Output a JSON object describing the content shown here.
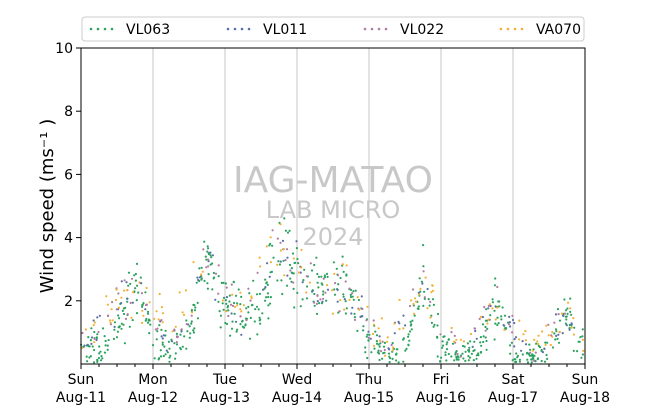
{
  "chart_data": {
    "type": "scatter",
    "ylabel": "Wind speed (ms⁻¹ )",
    "ylim": [
      0,
      10
    ],
    "y_ticks": [
      "2",
      "4",
      "6",
      "8",
      "10"
    ],
    "xlim": [
      "2024-08-11",
      "2024-08-18"
    ],
    "x_ticks": [
      {
        "day": "Sun",
        "date": "Aug-11"
      },
      {
        "day": "Mon",
        "date": "Aug-12"
      },
      {
        "day": "Tue",
        "date": "Aug-13"
      },
      {
        "day": "Wed",
        "date": "Aug-14"
      },
      {
        "day": "Thu",
        "date": "Aug-15"
      },
      {
        "day": "Fri",
        "date": "Aug-16"
      },
      {
        "day": "Sat",
        "date": "Aug-17"
      },
      {
        "day": "Sun",
        "date": "Aug-18"
      }
    ],
    "grid": "vertical gridlines at each day",
    "legend_position": "top, horizontal",
    "watermark": [
      "IAG-MATAO",
      "LAB MICRO",
      "2024"
    ],
    "series": [
      {
        "name": "VL063",
        "color": "#2ca25f",
        "daily_profile": [
          {
            "time": "2024-08-11 00:00",
            "y": 0.6
          },
          {
            "time": "2024-08-11 06:00",
            "y": 0.4
          },
          {
            "time": "2024-08-11 12:00",
            "y": 0.9
          },
          {
            "time": "2024-08-11 16:00",
            "y": 2.2
          },
          {
            "time": "2024-08-11 18:00",
            "y": 2.6
          },
          {
            "time": "2024-08-11 21:00",
            "y": 1.8
          },
          {
            "time": "2024-08-12 00:00",
            "y": 0.7
          },
          {
            "time": "2024-08-12 06:00",
            "y": 0.5
          },
          {
            "time": "2024-08-12 12:00",
            "y": 0.8
          },
          {
            "time": "2024-08-12 16:00",
            "y": 2.6
          },
          {
            "time": "2024-08-12 18:00",
            "y": 3.3
          },
          {
            "time": "2024-08-12 21:00",
            "y": 2.3
          },
          {
            "time": "2024-08-13 00:00",
            "y": 1.8
          },
          {
            "time": "2024-08-13 06:00",
            "y": 1.5
          },
          {
            "time": "2024-08-13 12:00",
            "y": 1.9
          },
          {
            "time": "2024-08-13 16:00",
            "y": 3.0
          },
          {
            "time": "2024-08-13 18:00",
            "y": 4.0
          },
          {
            "time": "2024-08-13 21:00",
            "y": 3.3
          },
          {
            "time": "2024-08-14 00:00",
            "y": 2.6
          },
          {
            "time": "2024-08-14 06:00",
            "y": 2.4
          },
          {
            "time": "2024-08-14 12:00",
            "y": 2.8
          },
          {
            "time": "2024-08-14 16:00",
            "y": 2.6
          },
          {
            "time": "2024-08-14 18:00",
            "y": 2.2
          },
          {
            "time": "2024-08-14 21:00",
            "y": 1.3
          },
          {
            "time": "2024-08-15 00:00",
            "y": 0.8
          },
          {
            "time": "2024-08-15 06:00",
            "y": 0.3
          },
          {
            "time": "2024-08-15 12:00",
            "y": 0.3
          },
          {
            "time": "2024-08-15 16:00",
            "y": 1.6
          },
          {
            "time": "2024-08-15 18:00",
            "y": 2.9
          },
          {
            "time": "2024-08-15 21:00",
            "y": 1.8
          },
          {
            "time": "2024-08-16 00:00",
            "y": 0.4
          },
          {
            "time": "2024-08-16 06:00",
            "y": 0.2
          },
          {
            "time": "2024-08-16 12:00",
            "y": 0.3
          },
          {
            "time": "2024-08-16 16:00",
            "y": 1.4
          },
          {
            "time": "2024-08-16 18:00",
            "y": 1.9
          },
          {
            "time": "2024-08-16 21:00",
            "y": 1.2
          },
          {
            "time": "2024-08-17 00:00",
            "y": 0.2
          },
          {
            "time": "2024-08-17 06:00",
            "y": 0.2
          },
          {
            "time": "2024-08-17 12:00",
            "y": 0.4
          },
          {
            "time": "2024-08-17 16:00",
            "y": 1.3
          },
          {
            "time": "2024-08-17 18:00",
            "y": 1.6
          },
          {
            "time": "2024-08-17 21:00",
            "y": 0.9
          },
          {
            "time": "2024-08-18 00:00",
            "y": 0.3
          }
        ]
      },
      {
        "name": "VL011",
        "color": "#5b6fa8",
        "daily_profile": [
          {
            "time": "2024-08-11 00:00",
            "y": 0.5
          },
          {
            "time": "2024-08-11 18:00",
            "y": 2.3
          },
          {
            "time": "2024-08-12 06:00",
            "y": 0.5
          },
          {
            "time": "2024-08-12 18:00",
            "y": 2.9
          },
          {
            "time": "2024-08-13 06:00",
            "y": 0.8
          },
          {
            "time": "2024-08-13 18:00",
            "y": 3.8
          },
          {
            "time": "2024-08-14 06:00",
            "y": 2.2
          },
          {
            "time": "2024-08-14 18:00",
            "y": 2.0
          },
          {
            "time": "2024-08-15 06:00",
            "y": 0.4
          },
          {
            "time": "2024-08-15 18:00",
            "y": 2.7
          },
          {
            "time": "2024-08-16 06:00",
            "y": 0.2
          },
          {
            "time": "2024-08-16 18:00",
            "y": 1.7
          },
          {
            "time": "2024-08-17 06:00",
            "y": 0.2
          },
          {
            "time": "2024-08-17 18:00",
            "y": 1.4
          },
          {
            "time": "2024-08-18 00:00",
            "y": 0.3
          }
        ]
      },
      {
        "name": "VL022",
        "color": "#b07aa1",
        "daily_profile": [
          {
            "time": "2024-08-11 00:00",
            "y": 0.6
          },
          {
            "time": "2024-08-11 18:00",
            "y": 2.4
          },
          {
            "time": "2024-08-12 06:00",
            "y": 0.5
          },
          {
            "time": "2024-08-12 18:00",
            "y": 3.0
          },
          {
            "time": "2024-08-13 06:00",
            "y": 1.6
          },
          {
            "time": "2024-08-13 18:00",
            "y": 3.7
          },
          {
            "time": "2024-08-14 06:00",
            "y": 2.4
          },
          {
            "time": "2024-08-14 18:00",
            "y": 2.1
          },
          {
            "time": "2024-08-15 06:00",
            "y": 0.4
          },
          {
            "time": "2024-08-15 18:00",
            "y": 2.8
          },
          {
            "time": "2024-08-16 06:00",
            "y": 0.3
          },
          {
            "time": "2024-08-16 18:00",
            "y": 2.0
          },
          {
            "time": "2024-08-17 06:00",
            "y": 0.3
          },
          {
            "time": "2024-08-17 18:00",
            "y": 1.6
          },
          {
            "time": "2024-08-18 00:00",
            "y": 0.4
          }
        ]
      },
      {
        "name": "VA070",
        "color": "#f2b134",
        "daily_profile": [
          {
            "time": "2024-08-11 00:00",
            "y": 1.0
          },
          {
            "time": "2024-08-11 18:00",
            "y": 2.4
          },
          {
            "time": "2024-08-12 06:00",
            "y": 1.4
          },
          {
            "time": "2024-08-12 18:00",
            "y": 2.8
          },
          {
            "time": "2024-08-13 06:00",
            "y": 1.9
          },
          {
            "time": "2024-08-13 18:00",
            "y": 3.6
          },
          {
            "time": "2024-08-14 06:00",
            "y": 2.5
          },
          {
            "time": "2024-08-14 18:00",
            "y": 2.0
          },
          {
            "time": "2024-08-15 06:00",
            "y": 0.6
          },
          {
            "time": "2024-08-15 18:00",
            "y": 2.6
          },
          {
            "time": "2024-08-16 06:00",
            "y": 0.5
          },
          {
            "time": "2024-08-16 18:00",
            "y": 1.8
          },
          {
            "time": "2024-08-17 06:00",
            "y": 0.5
          },
          {
            "time": "2024-08-17 18:00",
            "y": 1.5
          },
          {
            "time": "2024-08-18 00:00",
            "y": 0.6
          }
        ]
      }
    ]
  }
}
